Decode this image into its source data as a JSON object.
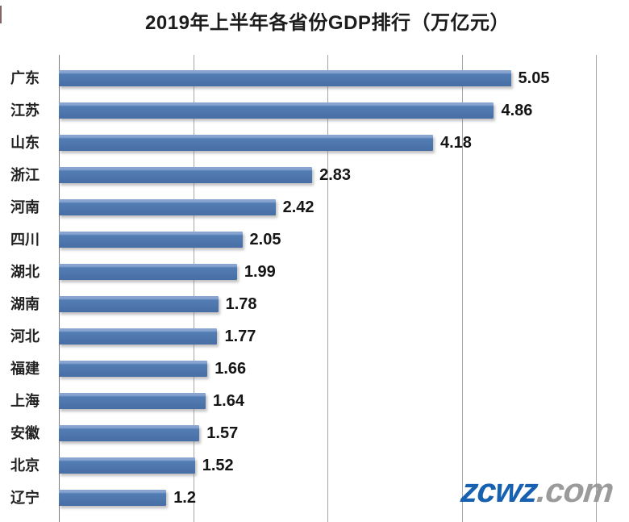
{
  "title": "2019年上半年各省份GDP排行（万亿元）",
  "watermark": {
    "brand": "zcwz",
    "suffix": ".com",
    "brand_color": "#1761b0",
    "suffix_color": "#9b9b9b"
  },
  "chart_data": {
    "type": "bar",
    "orientation": "horizontal",
    "title": "2019年上半年各省份GDP排行（万亿元）",
    "unit": "万亿元",
    "categories": [
      "广东",
      "江苏",
      "山东",
      "浙江",
      "河南",
      "四川",
      "湖北",
      "湖南",
      "河北",
      "福建",
      "上海",
      "安徽",
      "北京",
      "辽宁"
    ],
    "values": [
      5.05,
      4.86,
      4.18,
      2.83,
      2.42,
      2.05,
      1.99,
      1.78,
      1.77,
      1.66,
      1.64,
      1.57,
      1.52,
      1.2
    ],
    "value_labels": [
      "5.05",
      "4.86",
      "4.18",
      "2.83",
      "2.42",
      "2.05",
      "1.99",
      "1.78",
      "1.77",
      "1.66",
      "1.64",
      "1.57",
      "1.52",
      "1.2"
    ],
    "xlim": [
      0,
      6
    ],
    "gridline_step": 1.5,
    "grid": true,
    "legend": false,
    "bar_color": "#4f7db5",
    "value_labels_position": "end-of-bar"
  }
}
